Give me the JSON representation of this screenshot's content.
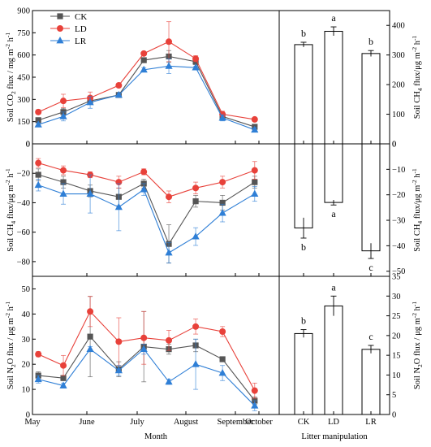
{
  "colors": {
    "CK": "#555555",
    "LD": "#e8413a",
    "LR": "#2f7fd6"
  },
  "legend": [
    "CK",
    "LD",
    "LR"
  ],
  "x_title": "Month",
  "bar_x_title": "Litter manipulation",
  "months": [
    "May",
    "June",
    "July",
    "August",
    "September",
    "October"
  ],
  "chart_data": [
    {
      "type": "line",
      "panel": "top-left",
      "ylabel": "Soil CO2 flux / mg m-2 h-1",
      "ylabel_parts": [
        "Soil CO",
        "2",
        " flux / mg m",
        "-2",
        " h",
        "-1"
      ],
      "ylim": [
        0,
        900
      ],
      "yticks": [
        0,
        150,
        300,
        450,
        600,
        750,
        900
      ],
      "x": [
        1,
        6,
        19,
        35,
        46,
        60,
        74,
        89,
        104,
        122
      ],
      "series": [
        {
          "name": "CK",
          "values": [
            160,
            215,
            290,
            330,
            565,
            590,
            555,
            185,
            115
          ],
          "errors": [
            10,
            25,
            20,
            10,
            15,
            40,
            20,
            20,
            15
          ],
          "x": [
            1,
            15,
            30,
            46,
            60,
            74,
            89,
            104,
            122
          ]
        },
        {
          "name": "LD",
          "values": [
            215,
            290,
            310,
            395,
            610,
            690,
            575,
            200,
            165
          ],
          "errors": [
            15,
            45,
            40,
            15,
            10,
            135,
            20,
            20,
            10
          ],
          "x": [
            1,
            15,
            30,
            46,
            60,
            74,
            89,
            104,
            122
          ]
        },
        {
          "name": "LR",
          "values": [
            130,
            185,
            280,
            330,
            500,
            525,
            515,
            175,
            95
          ],
          "errors": [
            10,
            30,
            40,
            10,
            15,
            50,
            10,
            20,
            15
          ],
          "x": [
            1,
            15,
            30,
            46,
            60,
            74,
            89,
            104,
            122
          ]
        }
      ]
    },
    {
      "type": "line",
      "panel": "middle-left",
      "ylabel": "Soil CH4 flux/μg m-2 h-1",
      "ylabel_parts": [
        "Soil CH",
        "4",
        " flux/μg m",
        "-2",
        " h",
        "-1"
      ],
      "ylim": [
        -90,
        0
      ],
      "yticks": [
        -80,
        -60,
        -40,
        -20,
        0
      ],
      "series": [
        {
          "name": "CK",
          "values": [
            -21,
            -26,
            -32,
            -36,
            -27,
            -68,
            -39,
            -40,
            -26
          ],
          "errors": [
            4,
            4,
            4,
            6,
            3,
            13,
            4,
            5,
            4
          ],
          "x": [
            1,
            15,
            30,
            46,
            60,
            74,
            89,
            104,
            122
          ]
        },
        {
          "name": "LD",
          "values": [
            -13,
            -18,
            -21,
            -26,
            -19,
            -36,
            -30,
            -26,
            -18
          ],
          "errors": [
            3,
            3,
            2,
            4,
            2,
            4,
            4,
            4,
            6
          ],
          "x": [
            1,
            15,
            30,
            46,
            60,
            74,
            89,
            104,
            122
          ]
        },
        {
          "name": "LR",
          "values": [
            -28,
            -34,
            -34,
            -43,
            -31,
            -74,
            -63,
            -47,
            -34
          ],
          "errors": [
            4,
            7,
            13,
            16,
            4,
            7,
            6,
            6,
            5
          ],
          "x": [
            1,
            15,
            30,
            46,
            60,
            74,
            89,
            104,
            122
          ]
        }
      ]
    },
    {
      "type": "line",
      "panel": "bottom-left",
      "ylabel": "Soil N2O flux / μg m-2 h-1",
      "ylabel_parts": [
        "Soil N",
        "2",
        "O flux / μg m",
        "-2",
        " h",
        "-1"
      ],
      "ylim": [
        0,
        55
      ],
      "yticks": [
        0,
        10,
        20,
        30,
        40,
        50
      ],
      "series": [
        {
          "name": "CK",
          "values": [
            15.5,
            14.5,
            31,
            18,
            27,
            26,
            27.5,
            22,
            5.5
          ],
          "errors": [
            1.5,
            1.0,
            16,
            3,
            14,
            2,
            2.5,
            1,
            1.5
          ],
          "x": [
            1,
            15,
            30,
            46,
            60,
            74,
            89,
            104,
            122
          ]
        },
        {
          "name": "LD",
          "values": [
            24,
            19.5,
            41,
            29,
            30.5,
            29.5,
            35,
            33,
            9.5
          ],
          "errors": [
            1,
            4,
            6,
            9.5,
            10.5,
            4,
            3,
            2,
            3
          ],
          "x": [
            1,
            15,
            30,
            46,
            60,
            74,
            89,
            104,
            122
          ]
        },
        {
          "name": "LR",
          "values": [
            14,
            11.5,
            26,
            17.5,
            26,
            13,
            20,
            16.5,
            3.5
          ],
          "errors": [
            1.5,
            1,
            1,
            2,
            2,
            1,
            10,
            3,
            2
          ],
          "x": [
            1,
            15,
            30,
            46,
            60,
            74,
            89,
            104,
            122
          ]
        }
      ]
    },
    {
      "type": "bar",
      "panel": "top-right",
      "ylabel": "Soil CH4 flux/μg m-2 h-1",
      "ylabel_parts": [
        "Soil CH",
        "4",
        " flux/μg m",
        "-2",
        " h",
        "-1"
      ],
      "ylim": [
        0,
        450
      ],
      "yticks": [
        0,
        100,
        200,
        300,
        400
      ],
      "categories": [
        "CK",
        "LD",
        "LR"
      ],
      "values": [
        335,
        380,
        305
      ],
      "errors": [
        8,
        15,
        10
      ],
      "letters": [
        "b",
        "a",
        "b"
      ]
    },
    {
      "type": "bar",
      "panel": "middle-right",
      "ylabel": "Soil CH4 flux/μg m-2 h-1",
      "ylabel_parts": [
        "Soil CH",
        "4",
        " flux/μg m",
        "-2",
        " h",
        "-1"
      ],
      "ylim": [
        -52,
        0
      ],
      "yticks": [
        -50,
        -40,
        -30,
        -20,
        -10,
        0
      ],
      "categories": [
        "CK",
        "LD",
        "LR"
      ],
      "values": [
        -33,
        -23,
        -42
      ],
      "errors": [
        4,
        1,
        3
      ],
      "letters": [
        "b",
        "a",
        "c"
      ]
    },
    {
      "type": "bar",
      "panel": "bottom-right",
      "ylabel": "Soil N2O flux / μg m-2 h-1",
      "ylabel_parts": [
        "Soil N",
        "2",
        "O flux / μg m",
        "-2",
        " h",
        "-1"
      ],
      "ylim": [
        0,
        35
      ],
      "yticks": [
        0,
        5,
        10,
        15,
        20,
        25,
        30,
        35
      ],
      "categories": [
        "CK",
        "LD",
        "LR"
      ],
      "values": [
        20.5,
        27.5,
        16.5
      ],
      "errors": [
        1.0,
        2.5,
        1.0
      ],
      "letters": [
        "b",
        "a",
        "c"
      ]
    }
  ]
}
